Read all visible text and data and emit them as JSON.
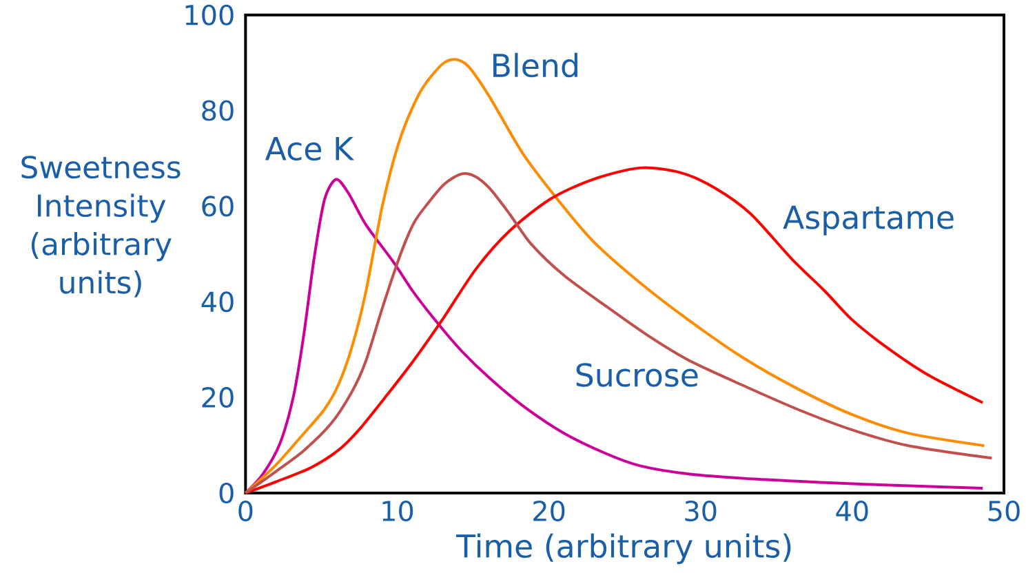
{
  "chart_data": {
    "type": "line",
    "xlabel": "Time (arbitrary units)",
    "ylabel": "Sweetness Intensity (arbitrary units)",
    "xlim": [
      0,
      50
    ],
    "ylim": [
      0,
      100
    ],
    "xticks": [
      0,
      10,
      20,
      30,
      40,
      50
    ],
    "yticks": [
      0,
      20,
      40,
      60,
      80,
      100
    ],
    "grid": false,
    "legend": false,
    "marker": "none",
    "line_style": "solid",
    "series": [
      {
        "name": "Ace K",
        "color": "#cc0099",
        "x": [
          0,
          1.13,
          2.26,
          3.17,
          3.85,
          4.52,
          5.2,
          5.97,
          6.79,
          7.92,
          9.73,
          11.1,
          12.7,
          14.25,
          16.1,
          18.3,
          21,
          23.8,
          26,
          29.2,
          33.7,
          38.2,
          42.8,
          48.6
        ],
        "values": [
          0,
          3.9,
          10.3,
          20.4,
          33.3,
          49.1,
          61.3,
          65.6,
          62.7,
          56.2,
          48.4,
          41.9,
          35.4,
          29.7,
          24,
          18.2,
          12.5,
          8.2,
          5.7,
          4,
          2.9,
          2.2,
          1.6,
          1
        ]
      },
      {
        "name": "Blend",
        "color": "#ff8c00",
        "x": [
          0,
          2.04,
          3.85,
          5.2,
          6.1,
          7.0,
          7.92,
          9.05,
          10.2,
          11.5,
          12.9,
          13.8,
          14.7,
          16.1,
          18.3,
          20.6,
          22.9,
          26,
          29.2,
          32.8,
          36.4,
          40,
          43.7,
          48.7
        ],
        "values": [
          0,
          6,
          12.5,
          17.5,
          22.5,
          30.4,
          41.9,
          60.5,
          74.2,
          83.8,
          89.5,
          90.7,
          89.2,
          82.8,
          70.9,
          61.3,
          52.7,
          44,
          36.2,
          28.3,
          21.8,
          16.4,
          12.5,
          9.9
        ]
      },
      {
        "name": "Aspartame",
        "color": "#ff0000",
        "x": [
          0,
          2.04,
          4.3,
          6.1,
          7.47,
          9.3,
          11.1,
          12.9,
          15.2,
          17.4,
          20.1,
          22.9,
          26,
          28.7,
          31,
          33.3,
          36,
          38.2,
          40,
          42.3,
          45,
          48.6
        ],
        "values": [
          0,
          2.4,
          5.3,
          8.9,
          13.2,
          20.4,
          27.8,
          35.9,
          46.9,
          54.8,
          61.5,
          65.6,
          68,
          67,
          63.7,
          58.4,
          49,
          42.2,
          36.2,
          30.4,
          24.7,
          18.9
        ]
      },
      {
        "name": "Sucrose",
        "color": "#c0504d",
        "x": [
          0,
          2.04,
          3.85,
          5.66,
          7.0,
          7.92,
          9.05,
          10.2,
          11.1,
          12,
          13.1,
          14.2,
          15.1,
          16.1,
          17.4,
          18.8,
          21,
          23.8,
          26.5,
          29.2,
          32.8,
          36.4,
          40,
          43.7,
          49.2
        ],
        "values": [
          0,
          4.6,
          8.9,
          14.6,
          21.1,
          27.5,
          39,
          49.8,
          56.5,
          60.5,
          64.6,
          66.7,
          66.3,
          63.7,
          58.4,
          52.2,
          45.5,
          39,
          33,
          27.8,
          22.5,
          17.5,
          13.2,
          9.9,
          7.3
        ]
      }
    ]
  }
}
